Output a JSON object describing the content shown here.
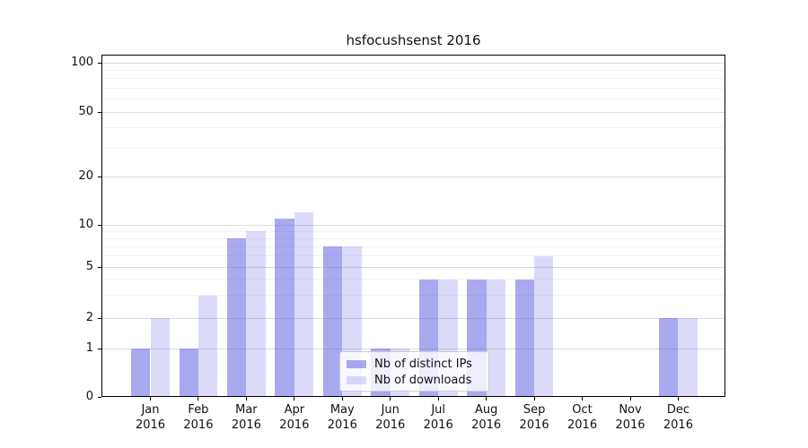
{
  "chart_data": {
    "type": "bar",
    "title": "hsfocushsenst 2016",
    "year": "2016",
    "months": [
      "Jan",
      "Feb",
      "Mar",
      "Apr",
      "May",
      "Jun",
      "Jul",
      "Aug",
      "Sep",
      "Oct",
      "Nov",
      "Dec"
    ],
    "categories": [
      "Jan 2016",
      "Feb 2016",
      "Mar 2016",
      "Apr 2016",
      "May 2016",
      "Jun 2016",
      "Jul 2016",
      "Aug 2016",
      "Sep 2016",
      "Oct 2016",
      "Nov 2016",
      "Dec 2016"
    ],
    "series": [
      {
        "name": "Nb of distinct IPs",
        "color": "#aaaaee",
        "values": [
          1,
          1,
          8,
          11,
          7,
          1,
          4,
          4,
          4,
          0,
          0,
          2
        ]
      },
      {
        "name": "Nb of downloads",
        "color": "#dcdcf8",
        "values": [
          2,
          3,
          9,
          12,
          7,
          1,
          4,
          4,
          6,
          0,
          0,
          2
        ]
      }
    ],
    "yscale": "symlog",
    "ytick_labels": [
      "100",
      "50",
      "20",
      "10",
      "5",
      "2",
      "1",
      "0"
    ],
    "yticks": [
      100,
      50,
      20,
      10,
      5,
      2,
      1,
      0
    ],
    "minor_yticks": [
      3,
      4,
      6,
      7,
      8,
      9,
      30,
      40,
      60,
      70,
      80,
      90
    ],
    "ylim": [
      0,
      115
    ],
    "grid": true,
    "xlabel": "",
    "ylabel": "",
    "legend_position": "lower-center"
  }
}
